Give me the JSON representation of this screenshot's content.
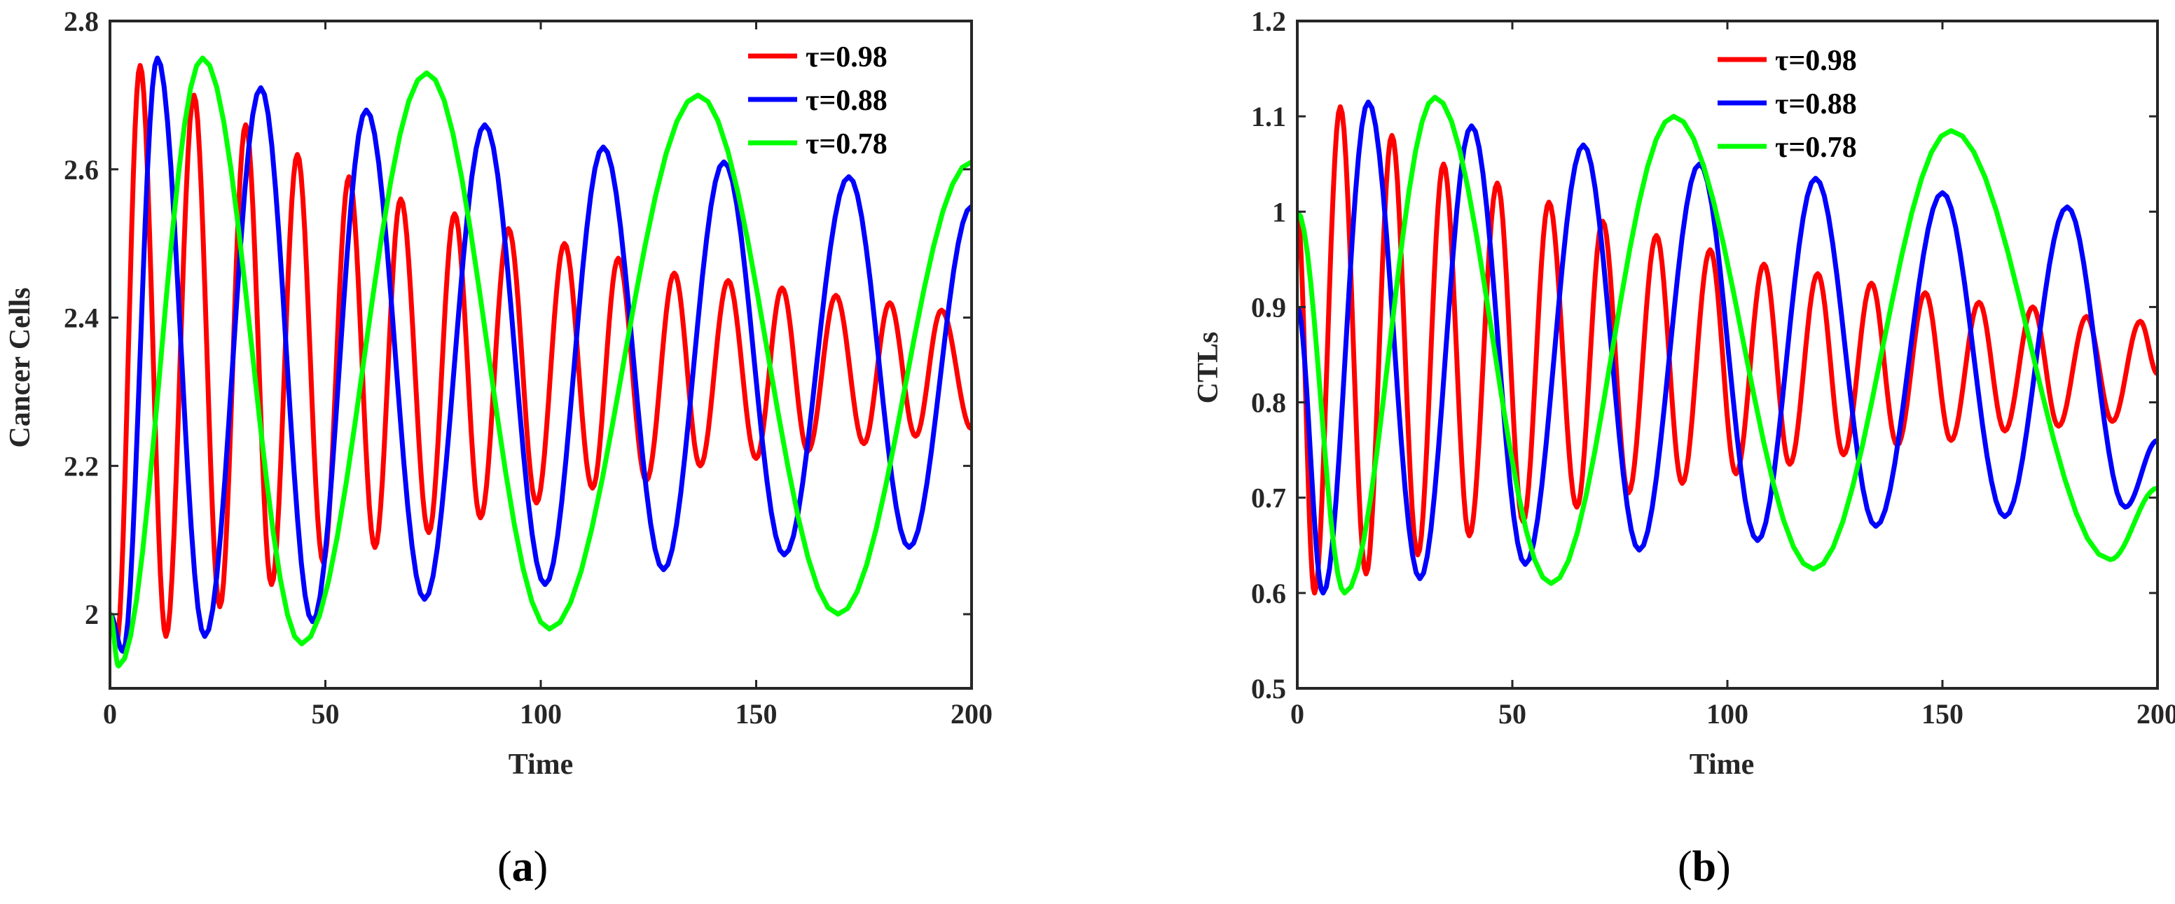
{
  "chart_data": [
    {
      "type": "line",
      "panel_label": "a",
      "xlabel": "Time",
      "ylabel": "Cancer Cells",
      "xlim": [
        0,
        200
      ],
      "ylim": [
        1.9,
        2.8
      ],
      "xticks": [
        0,
        50,
        100,
        150,
        200
      ],
      "yticks": [
        2,
        2.2,
        2.4,
        2.6,
        2.8
      ],
      "ytick_labels": [
        "2",
        "2.2",
        "2.4",
        "2.6",
        "2.8"
      ],
      "legend_position": "top-right",
      "grid": false,
      "series": [
        {
          "name": "τ=0.98",
          "color": "#ff0000",
          "x": [
            0,
            1.5,
            7,
            13,
            19.5,
            25.5,
            31.5,
            37.5,
            43.5,
            49.5,
            55.5,
            61.5,
            67.5,
            74,
            80,
            86,
            92.5,
            99,
            105.5,
            112,
            118,
            124.5,
            131,
            137,
            143.5,
            150,
            156,
            162,
            168.5,
            175,
            181,
            187,
            193,
            200
          ],
          "y": [
            2.0,
            1.96,
            2.74,
            1.97,
            2.7,
            2.01,
            2.66,
            2.04,
            2.62,
            2.07,
            2.59,
            2.09,
            2.56,
            2.11,
            2.54,
            2.13,
            2.52,
            2.15,
            2.5,
            2.17,
            2.48,
            2.18,
            2.46,
            2.2,
            2.45,
            2.21,
            2.44,
            2.22,
            2.43,
            2.23,
            2.42,
            2.24,
            2.41,
            2.25
          ]
        },
        {
          "name": "τ=0.88",
          "color": "#0000ff",
          "x": [
            0,
            3,
            11,
            22,
            35,
            47,
            59.5,
            73,
            87,
            101,
            114.5,
            128.5,
            142.5,
            156.5,
            171.5,
            185.5,
            200
          ],
          "y": [
            2.0,
            1.95,
            2.75,
            1.97,
            2.71,
            1.99,
            2.68,
            2.02,
            2.66,
            2.04,
            2.63,
            2.06,
            2.61,
            2.08,
            2.59,
            2.09,
            2.55
          ]
        },
        {
          "name": "τ=0.78",
          "color": "#00ff00",
          "x": [
            0,
            2,
            21.5,
            44.5,
            73.5,
            102,
            136.5,
            169,
            200
          ],
          "y": [
            2.0,
            1.93,
            2.75,
            1.96,
            2.73,
            1.98,
            2.7,
            2.0,
            2.61
          ]
        }
      ]
    },
    {
      "type": "line",
      "panel_label": "b",
      "xlabel": "Time",
      "ylabel": "CTLs",
      "xlim": [
        0,
        200
      ],
      "ylim": [
        0.5,
        1.2
      ],
      "xticks": [
        0,
        50,
        100,
        150,
        200
      ],
      "yticks": [
        0.5,
        0.6,
        0.7,
        0.8,
        0.9,
        1.0,
        1.1,
        1.2
      ],
      "ytick_labels": [
        "0.5",
        "0.6",
        "0.7",
        "0.8",
        "0.9",
        "1",
        "1.1",
        "1.2"
      ],
      "legend_position": "top-right",
      "grid": false,
      "series": [
        {
          "name": "τ=0.98",
          "color": "#ff0000",
          "x": [
            0,
            4,
            10,
            16,
            22,
            28,
            34,
            40,
            46.5,
            52.5,
            58.5,
            65,
            71,
            77,
            83.5,
            89.5,
            96,
            102,
            108.5,
            114.5,
            121,
            127,
            133.5,
            139.5,
            146,
            152,
            158.5,
            164.5,
            171,
            177,
            183.5,
            189.5,
            196,
            200
          ],
          "y": [
            1.0,
            0.6,
            1.11,
            0.62,
            1.08,
            0.64,
            1.05,
            0.66,
            1.03,
            0.675,
            1.01,
            0.69,
            0.99,
            0.705,
            0.975,
            0.715,
            0.96,
            0.725,
            0.945,
            0.735,
            0.935,
            0.745,
            0.925,
            0.755,
            0.915,
            0.76,
            0.905,
            0.77,
            0.9,
            0.775,
            0.89,
            0.78,
            0.885,
            0.83
          ]
        },
        {
          "name": "τ=0.88",
          "color": "#0000ff",
          "x": [
            0,
            6,
            16.5,
            28.5,
            40.5,
            53,
            66.5,
            79.5,
            93.5,
            107,
            120.5,
            134.5,
            150,
            164.5,
            179,
            192.5,
            200
          ],
          "y": [
            0.9,
            0.6,
            1.115,
            0.615,
            1.09,
            0.63,
            1.07,
            0.645,
            1.05,
            0.655,
            1.035,
            0.67,
            1.02,
            0.68,
            1.005,
            0.69,
            0.76
          ]
        },
        {
          "name": "τ=0.78",
          "color": "#00ff00",
          "x": [
            0,
            11,
            32,
            59,
            87.5,
            120,
            152,
            189,
            200
          ],
          "y": [
            1.0,
            0.6,
            1.12,
            0.61,
            1.1,
            0.625,
            1.085,
            0.635,
            0.71
          ]
        }
      ]
    }
  ]
}
